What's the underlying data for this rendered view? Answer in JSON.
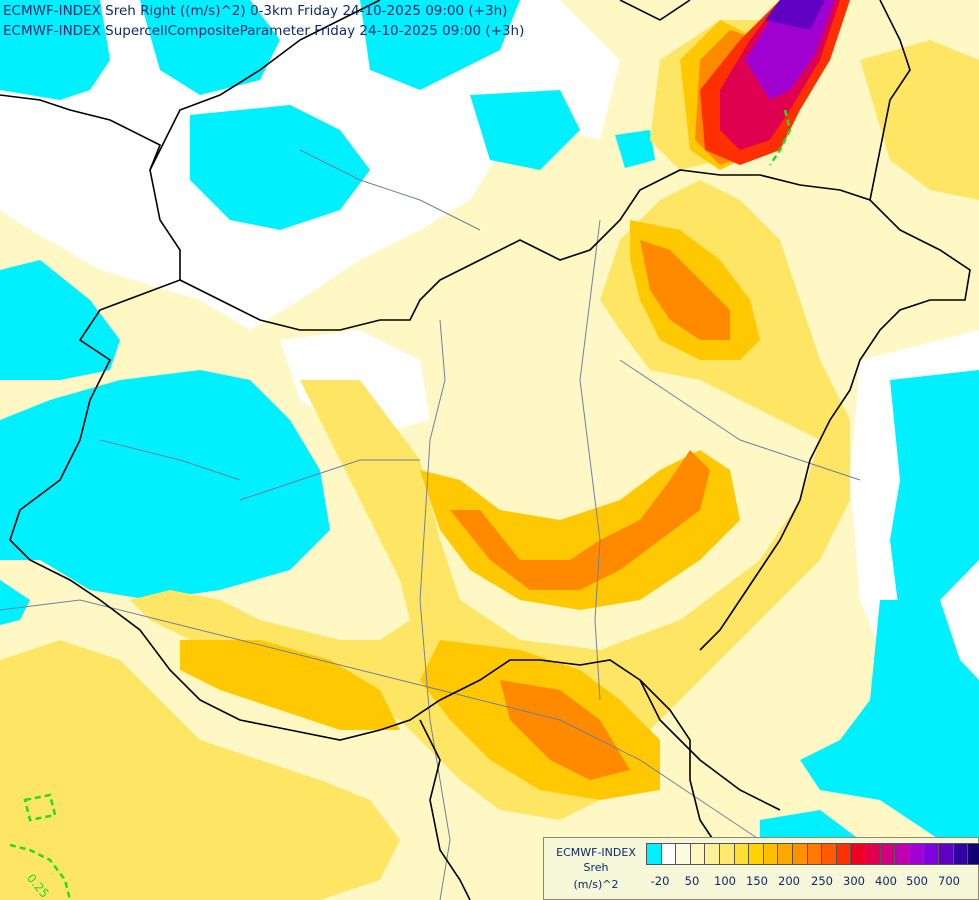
{
  "header": {
    "line1": "ECMWF-INDEX Sreh Right ((m/s)^2) 0-3km Friday 24-10-2025 09:00 (+3h)",
    "line2": "ECMWF-INDEX SupercellCompositeParameter Friday 24-10-2025 09:00 (+3h)"
  },
  "legend": {
    "title1": "ECMWF-INDEX",
    "title2": "Sreh",
    "unit": "(m/s)^2",
    "colors": [
      "#00f0ff",
      "#ffffff",
      "#fffbe0",
      "#fff6c0",
      "#fff09a",
      "#ffe870",
      "#ffe030",
      "#ffd200",
      "#ffbe00",
      "#ffa800",
      "#ff9000",
      "#ff7800",
      "#ff5a00",
      "#ff3000",
      "#f00020",
      "#e00050",
      "#d00080",
      "#c000b0",
      "#a000d0",
      "#8000e0",
      "#6000c0",
      "#3000a0",
      "#100070"
    ],
    "ticks": [
      "-20",
      "50",
      "100",
      "150",
      "200",
      "250",
      "300",
      "400",
      "500",
      "700"
    ]
  },
  "contour_label": "0.25",
  "colors": {
    "border": "#000000",
    "river": "#7080a0",
    "scp_contour": "#22dd22",
    "text": "#0b2a6b"
  }
}
